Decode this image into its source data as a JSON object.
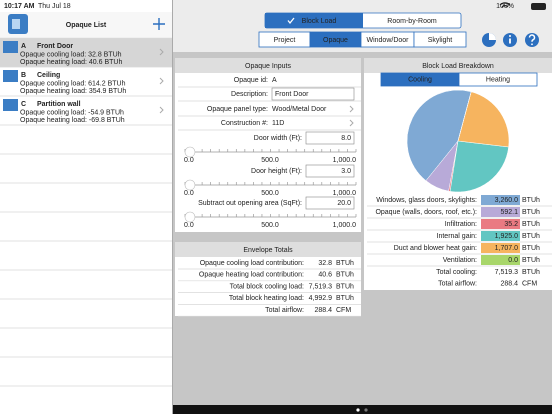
{
  "status_bar": {
    "time": "10:17 AM",
    "date": "Thu Jul 18",
    "battery": "100%"
  },
  "sidebar": {
    "title": "Opaque List",
    "items": [
      {
        "letter": "A",
        "name": "Front Door",
        "cooling": "Opaque cooling load: 32.8 BTUh",
        "heating": "Opaque heating load: 40.6 BTUh"
      },
      {
        "letter": "B",
        "name": "Ceiling",
        "cooling": "Opaque cooling load: 614.2 BTUh",
        "heating": "Opaque heating load: 354.9 BTUh"
      },
      {
        "letter": "C",
        "name": "Partition wall",
        "cooling": "Opaque cooling load: -54.9 BTUh",
        "heating": "Opaque heating load: -69.8 BTUh"
      }
    ]
  },
  "toolbar": {
    "modes": [
      "Block Load",
      "Room-by-Room"
    ],
    "tabs": [
      "Project",
      "Opaque",
      "Window/Door",
      "Skylight"
    ]
  },
  "inputs": {
    "title": "Opaque Inputs",
    "fields": [
      {
        "label": "Opaque id:",
        "value": "A"
      },
      {
        "label": "Description:",
        "value": "Front Door"
      },
      {
        "label": "Opaque panel type:",
        "value": "Wood/Metal Door"
      },
      {
        "label": "Construction #:",
        "value": "11D"
      }
    ],
    "sliders": [
      {
        "label": "Door width (Ft):",
        "value": "8.0",
        "ticks": [
          "0.0",
          "500.0",
          "1,000.0"
        ]
      },
      {
        "label": "Door height (Ft):",
        "value": "3.0",
        "ticks": [
          "0.0",
          "500.0",
          "1,000.0"
        ]
      },
      {
        "label": "Subtract out opening area (SqFt):",
        "value": "20.0",
        "ticks": [
          "0.0",
          "500.0",
          "1,000.0"
        ]
      }
    ]
  },
  "envelope": {
    "title": "Envelope Totals",
    "rows": [
      {
        "label": "Opaque cooling load contribution:",
        "value": "32.8",
        "unit": "BTUh"
      },
      {
        "label": "Opaque heating load contribution:",
        "value": "40.6",
        "unit": "BTUh"
      },
      {
        "label": "Total block cooling load:",
        "value": "7,519.3",
        "unit": "BTUh"
      },
      {
        "label": "Total block heating load:",
        "value": "4,992.9",
        "unit": "BTUh"
      },
      {
        "label": "Total airflow:",
        "value": "288.4",
        "unit": "CFM"
      }
    ]
  },
  "breakdown": {
    "title": "Block Load Breakdown",
    "toggle": [
      "Cooling",
      "Heating"
    ],
    "totals": [
      {
        "label": "Total cooling:",
        "value": "7,519.3",
        "unit": "BTUh"
      },
      {
        "label": "Total airflow:",
        "value": "288.4",
        "unit": "CFM"
      }
    ]
  },
  "chart_data": {
    "type": "pie",
    "unit": "BTUh",
    "categories": [
      "Windows, glass doors, skylights:",
      "Opaque (walls, doors, roof, etc.):",
      "Infiltration:",
      "Internal gain:",
      "Duct and blower heat gain:",
      "Ventilation:"
    ],
    "values": [
      3260.0,
      592.1,
      35.2,
      1925.0,
      1707.0,
      0.0
    ],
    "value_labels": [
      "3,260.0",
      "592.1",
      "35.2",
      "1,925.0",
      "1,707.0",
      "0.0"
    ],
    "colors": [
      "#7fa9d4",
      "#b8aad8",
      "#ea7a82",
      "#62c6c2",
      "#f6b45f",
      "#a8d66a"
    ]
  }
}
